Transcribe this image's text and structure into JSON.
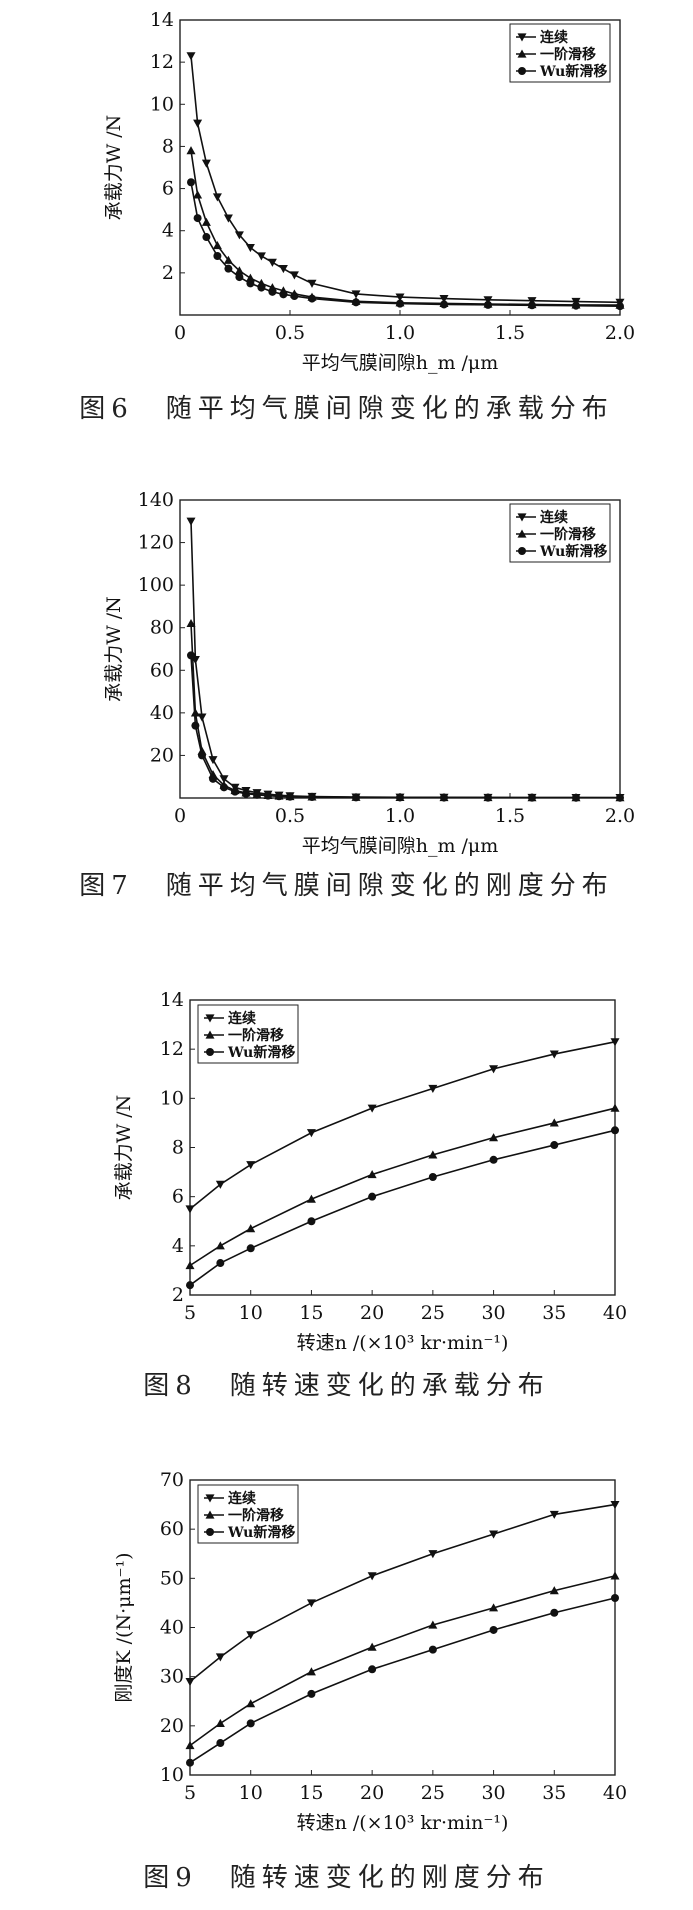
{
  "chart_data": [
    {
      "type": "line",
      "caption": "图6　随平均气膜间隙变化的承载分布",
      "xlabel": "平均气膜间隙h_m /μm",
      "ylabel": "承载力W /N",
      "xlim": [
        0,
        2.0
      ],
      "ylim": [
        0,
        14
      ],
      "xticks": [
        "0",
        "0.5",
        "1.0",
        "1.5",
        "2.0"
      ],
      "yticks": [
        "2",
        "4",
        "6",
        "8",
        "10",
        "12",
        "14"
      ],
      "legend_position": "top-right",
      "series": [
        {
          "name": "连续",
          "marker": "triangle-down",
          "x": [
            0.05,
            0.08,
            0.12,
            0.17,
            0.22,
            0.27,
            0.32,
            0.37,
            0.42,
            0.47,
            0.52,
            0.6,
            0.8,
            1.0,
            1.2,
            1.4,
            1.6,
            1.8,
            2.0
          ],
          "y": [
            12.3,
            9.1,
            7.2,
            5.6,
            4.6,
            3.8,
            3.2,
            2.8,
            2.5,
            2.2,
            1.9,
            1.5,
            1.0,
            0.85,
            0.78,
            0.72,
            0.68,
            0.64,
            0.6
          ]
        },
        {
          "name": "一阶滑移",
          "marker": "triangle-up",
          "x": [
            0.05,
            0.08,
            0.12,
            0.17,
            0.22,
            0.27,
            0.32,
            0.37,
            0.42,
            0.47,
            0.52,
            0.6,
            0.8,
            1.0,
            1.2,
            1.4,
            1.6,
            1.8,
            2.0
          ],
          "y": [
            7.8,
            5.7,
            4.4,
            3.3,
            2.6,
            2.1,
            1.75,
            1.5,
            1.3,
            1.15,
            1.0,
            0.85,
            0.65,
            0.58,
            0.55,
            0.52,
            0.5,
            0.48,
            0.47
          ]
        },
        {
          "name": "Wu新滑移",
          "marker": "circle",
          "x": [
            0.05,
            0.08,
            0.12,
            0.17,
            0.22,
            0.27,
            0.32,
            0.37,
            0.42,
            0.47,
            0.52,
            0.6,
            0.8,
            1.0,
            1.2,
            1.4,
            1.6,
            1.8,
            2.0
          ],
          "y": [
            6.3,
            4.6,
            3.7,
            2.8,
            2.2,
            1.8,
            1.5,
            1.3,
            1.1,
            0.98,
            0.9,
            0.78,
            0.6,
            0.54,
            0.5,
            0.48,
            0.46,
            0.44,
            0.42
          ]
        }
      ]
    },
    {
      "type": "line",
      "caption": "图7　随平均气膜间隙变化的刚度分布",
      "xlabel": "平均气膜间隙h_m /μm",
      "ylabel": "承载力W /N",
      "xlim": [
        0,
        2.0
      ],
      "ylim": [
        0,
        140
      ],
      "xticks": [
        "0",
        "0.5",
        "1.0",
        "1.5",
        "2.0"
      ],
      "yticks": [
        "20",
        "40",
        "60",
        "80",
        "100",
        "120",
        "140"
      ],
      "legend_position": "top-right",
      "series": [
        {
          "name": "连续",
          "marker": "triangle-down",
          "x": [
            0.05,
            0.07,
            0.1,
            0.15,
            0.2,
            0.25,
            0.3,
            0.35,
            0.4,
            0.45,
            0.5,
            0.6,
            0.8,
            1.0,
            1.2,
            1.4,
            1.6,
            1.8,
            2.0
          ],
          "y": [
            130,
            65,
            38,
            18,
            9,
            5,
            3.5,
            2.5,
            1.8,
            1.3,
            1.0,
            0.7,
            0.45,
            0.35,
            0.3,
            0.25,
            0.22,
            0.2,
            0.18
          ]
        },
        {
          "name": "一阶滑移",
          "marker": "triangle-up",
          "x": [
            0.05,
            0.07,
            0.1,
            0.15,
            0.2,
            0.25,
            0.3,
            0.35,
            0.4,
            0.45,
            0.5,
            0.6,
            0.8,
            1.0,
            1.2,
            1.4,
            1.6,
            1.8,
            2.0
          ],
          "y": [
            82,
            40,
            22,
            11,
            6,
            3.5,
            2.4,
            1.7,
            1.2,
            0.9,
            0.7,
            0.5,
            0.35,
            0.28,
            0.24,
            0.2,
            0.18,
            0.16,
            0.15
          ]
        },
        {
          "name": "Wu新滑移",
          "marker": "circle",
          "x": [
            0.05,
            0.07,
            0.1,
            0.15,
            0.2,
            0.25,
            0.3,
            0.35,
            0.4,
            0.45,
            0.5,
            0.6,
            0.8,
            1.0,
            1.2,
            1.4,
            1.6,
            1.8,
            2.0
          ],
          "y": [
            67,
            34,
            20,
            9,
            5,
            3,
            2,
            1.5,
            1.1,
            0.8,
            0.6,
            0.45,
            0.3,
            0.25,
            0.2,
            0.18,
            0.16,
            0.14,
            0.13
          ]
        }
      ]
    },
    {
      "type": "line",
      "caption": "图8　随转速变化的承载分布",
      "xlabel": "转速n /(×10³ kr·min⁻¹)",
      "ylabel": "承载力W /N",
      "xlim": [
        5,
        40
      ],
      "ylim": [
        2,
        14
      ],
      "xticks": [
        "5",
        "10",
        "15",
        "20",
        "25",
        "30",
        "35",
        "40"
      ],
      "yticks": [
        "2",
        "4",
        "6",
        "8",
        "10",
        "12",
        "14"
      ],
      "legend_position": "top-left",
      "series": [
        {
          "name": "连续",
          "marker": "triangle-down",
          "x": [
            5,
            7.5,
            10,
            15,
            20,
            25,
            30,
            35,
            40
          ],
          "y": [
            5.5,
            6.5,
            7.3,
            8.6,
            9.6,
            10.4,
            11.2,
            11.8,
            12.3
          ]
        },
        {
          "name": "一阶滑移",
          "marker": "triangle-up",
          "x": [
            5,
            7.5,
            10,
            15,
            20,
            25,
            30,
            35,
            40
          ],
          "y": [
            3.2,
            4.0,
            4.7,
            5.9,
            6.9,
            7.7,
            8.4,
            9.0,
            9.6
          ]
        },
        {
          "name": "Wu新滑移",
          "marker": "circle",
          "x": [
            5,
            7.5,
            10,
            15,
            20,
            25,
            30,
            35,
            40
          ],
          "y": [
            2.4,
            3.3,
            3.9,
            5.0,
            6.0,
            6.8,
            7.5,
            8.1,
            8.7
          ]
        }
      ]
    },
    {
      "type": "line",
      "caption": "图9　随转速变化的刚度分布",
      "xlabel": "转速n /(×10³ kr·min⁻¹)",
      "ylabel": "刚度K /(N·μm⁻¹)",
      "xlim": [
        5,
        40
      ],
      "ylim": [
        10,
        70
      ],
      "xticks": [
        "5",
        "10",
        "15",
        "20",
        "25",
        "30",
        "35",
        "40"
      ],
      "yticks": [
        "10",
        "20",
        "30",
        "40",
        "50",
        "60",
        "70"
      ],
      "legend_position": "top-left",
      "series": [
        {
          "name": "连续",
          "marker": "triangle-down",
          "x": [
            5,
            7.5,
            10,
            15,
            20,
            25,
            30,
            35,
            40
          ],
          "y": [
            29,
            34,
            38.5,
            45,
            50.5,
            55,
            59,
            63,
            65
          ]
        },
        {
          "name": "一阶滑移",
          "marker": "triangle-up",
          "x": [
            5,
            7.5,
            10,
            15,
            20,
            25,
            30,
            35,
            40
          ],
          "y": [
            16,
            20.5,
            24.5,
            31,
            36,
            40.5,
            44,
            47.5,
            50.5
          ]
        },
        {
          "name": "Wu新滑移",
          "marker": "circle",
          "x": [
            5,
            7.5,
            10,
            15,
            20,
            25,
            30,
            35,
            40
          ],
          "y": [
            12.5,
            16.5,
            20.5,
            26.5,
            31.5,
            35.5,
            39.5,
            43,
            46
          ]
        }
      ]
    }
  ]
}
